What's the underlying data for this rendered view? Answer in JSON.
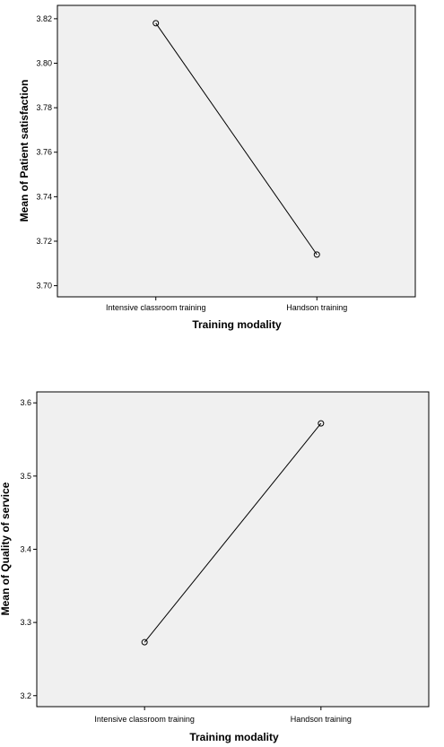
{
  "chart_data": [
    {
      "type": "line",
      "xlabel": "Training modality",
      "ylabel": "Mean of Patient satisfaction",
      "categories": [
        "Intensive classroom training",
        "Handson training"
      ],
      "values": [
        3.818,
        3.714
      ],
      "ylim": [
        3.695,
        3.826
      ],
      "yticks": [
        3.7,
        3.72,
        3.74,
        3.76,
        3.78,
        3.8,
        3.82
      ],
      "ytick_labels": [
        "3.70",
        "3.72",
        "3.74",
        "3.76",
        "3.78",
        "3.80",
        "3.82"
      ],
      "grid": false,
      "colors": {
        "plot_background": "#f0f0f0",
        "line": "#000000"
      }
    },
    {
      "type": "line",
      "xlabel": "Training modality",
      "ylabel": "Mean of Quality of service",
      "categories": [
        "Intensive classroom training",
        "Handson training"
      ],
      "values": [
        3.273,
        3.572
      ],
      "ylim": [
        3.185,
        3.615
      ],
      "yticks": [
        3.2,
        3.3,
        3.4,
        3.5,
        3.6
      ],
      "ytick_labels": [
        "3.2",
        "3.3",
        "3.4",
        "3.5",
        "3.6"
      ],
      "grid": false,
      "colors": {
        "plot_background": "#f0f0f0",
        "line": "#000000"
      }
    }
  ]
}
